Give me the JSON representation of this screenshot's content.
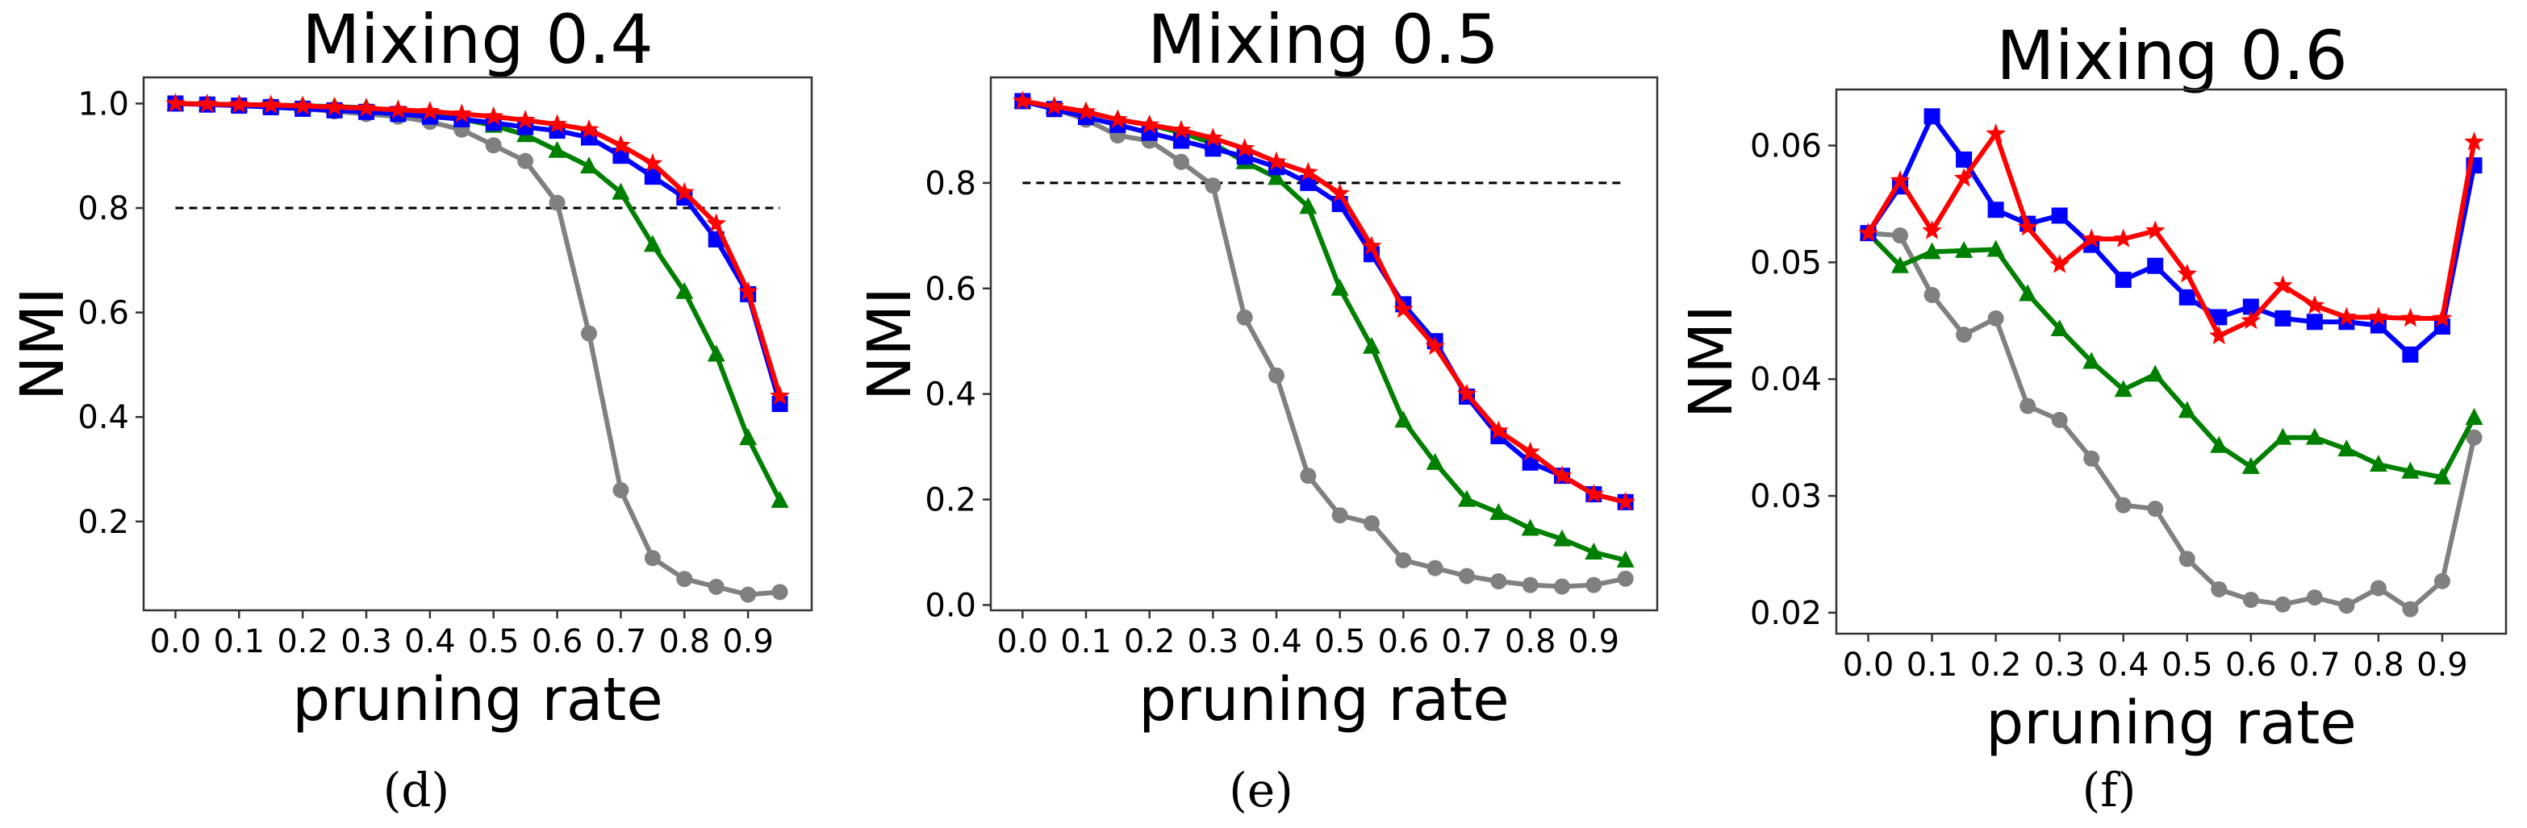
{
  "colors": {
    "red": "#ff0000",
    "blue": "#0000ff",
    "green": "#008000",
    "gray": "#808080",
    "reference": "#000000"
  },
  "chart_data": [
    {
      "type": "line",
      "title": "Mixing 0.4",
      "xlabel": "pruning rate",
      "ylabel": "NMI",
      "caption": "(d)",
      "xlim": [
        -0.05,
        1.0
      ],
      "ylim": [
        0.03,
        1.05
      ],
      "xticks": [
        0.0,
        0.1,
        0.2,
        0.3,
        0.4,
        0.5,
        0.6,
        0.7,
        0.8,
        0.9
      ],
      "xtick_labels": [
        "0.0",
        "0.1",
        "0.2",
        "0.3",
        "0.4",
        "0.5",
        "0.6",
        "0.7",
        "0.8",
        "0.9"
      ],
      "yticks": [
        0.2,
        0.4,
        0.6,
        0.8,
        1.0
      ],
      "ytick_labels": [
        "0.2",
        "0.4",
        "0.6",
        "0.8",
        "1.0"
      ],
      "reference_line": {
        "y": 0.8,
        "x": [
          0.0,
          0.95
        ],
        "style": "dashed"
      },
      "x": [
        0.0,
        0.05,
        0.1,
        0.15,
        0.2,
        0.25,
        0.3,
        0.35,
        0.4,
        0.45,
        0.5,
        0.55,
        0.6,
        0.65,
        0.7,
        0.75,
        0.8,
        0.85,
        0.9,
        0.95
      ],
      "series": [
        {
          "name": "red-star",
          "color": "red",
          "marker": "star",
          "values": [
            1.0,
            0.999,
            0.998,
            0.997,
            0.995,
            0.993,
            0.991,
            0.988,
            0.985,
            0.98,
            0.975,
            0.968,
            0.96,
            0.95,
            0.92,
            0.885,
            0.83,
            0.77,
            0.64,
            0.44
          ]
        },
        {
          "name": "blue-square",
          "color": "blue",
          "marker": "square",
          "values": [
            1.0,
            0.998,
            0.996,
            0.993,
            0.99,
            0.987,
            0.984,
            0.98,
            0.975,
            0.97,
            0.963,
            0.955,
            0.948,
            0.935,
            0.9,
            0.86,
            0.82,
            0.74,
            0.635,
            0.425
          ]
        },
        {
          "name": "green-triangle",
          "color": "green",
          "marker": "triangle",
          "values": [
            1.0,
            0.999,
            0.998,
            0.997,
            0.996,
            0.994,
            0.992,
            0.985,
            0.98,
            0.97,
            0.958,
            0.94,
            0.91,
            0.88,
            0.83,
            0.73,
            0.64,
            0.52,
            0.36,
            0.24
          ]
        },
        {
          "name": "gray-circle",
          "color": "gray",
          "marker": "circle",
          "values": [
            1.0,
            0.999,
            0.997,
            0.995,
            0.99,
            0.985,
            0.98,
            0.975,
            0.965,
            0.95,
            0.92,
            0.89,
            0.81,
            0.56,
            0.26,
            0.13,
            0.09,
            0.075,
            0.06,
            0.065
          ]
        }
      ]
    },
    {
      "type": "line",
      "title": "Mixing 0.5",
      "xlabel": "pruning rate",
      "ylabel": "NMI",
      "caption": "(e)",
      "xlim": [
        -0.05,
        1.0
      ],
      "ylim": [
        -0.01,
        1.0
      ],
      "xticks": [
        0.0,
        0.1,
        0.2,
        0.3,
        0.4,
        0.5,
        0.6,
        0.7,
        0.8,
        0.9
      ],
      "xtick_labels": [
        "0.0",
        "0.1",
        "0.2",
        "0.3",
        "0.4",
        "0.5",
        "0.6",
        "0.7",
        "0.8",
        "0.9"
      ],
      "yticks": [
        0.0,
        0.2,
        0.4,
        0.6,
        0.8
      ],
      "ytick_labels": [
        "0.0",
        "0.2",
        "0.4",
        "0.6",
        "0.8"
      ],
      "reference_line": {
        "y": 0.8,
        "x": [
          0.0,
          0.95
        ],
        "style": "dashed"
      },
      "x": [
        0.0,
        0.05,
        0.1,
        0.15,
        0.2,
        0.25,
        0.3,
        0.35,
        0.4,
        0.45,
        0.5,
        0.55,
        0.6,
        0.65,
        0.7,
        0.75,
        0.8,
        0.85,
        0.9,
        0.95
      ],
      "series": [
        {
          "name": "red-star",
          "color": "red",
          "marker": "star",
          "values": [
            0.955,
            0.945,
            0.935,
            0.92,
            0.91,
            0.9,
            0.885,
            0.865,
            0.84,
            0.82,
            0.78,
            0.68,
            0.56,
            0.49,
            0.4,
            0.33,
            0.29,
            0.245,
            0.21,
            0.195
          ]
        },
        {
          "name": "blue-square",
          "color": "blue",
          "marker": "square",
          "values": [
            0.955,
            0.94,
            0.925,
            0.91,
            0.895,
            0.88,
            0.865,
            0.85,
            0.83,
            0.8,
            0.76,
            0.665,
            0.57,
            0.5,
            0.395,
            0.32,
            0.27,
            0.245,
            0.21,
            0.195
          ]
        },
        {
          "name": "green-triangle",
          "color": "green",
          "marker": "triangle",
          "values": [
            0.955,
            0.945,
            0.935,
            0.92,
            0.91,
            0.895,
            0.875,
            0.84,
            0.81,
            0.755,
            0.6,
            0.49,
            0.35,
            0.27,
            0.2,
            0.175,
            0.145,
            0.125,
            0.1,
            0.085
          ]
        },
        {
          "name": "gray-circle",
          "color": "gray",
          "marker": "circle",
          "values": [
            0.955,
            0.94,
            0.92,
            0.89,
            0.88,
            0.84,
            0.795,
            0.545,
            0.435,
            0.245,
            0.17,
            0.155,
            0.085,
            0.07,
            0.055,
            0.045,
            0.038,
            0.035,
            0.038,
            0.05
          ]
        }
      ]
    },
    {
      "type": "line",
      "title": "Mixing 0.6",
      "xlabel": "pruning rate",
      "ylabel": "NMI",
      "caption": "(f)",
      "xlim": [
        -0.05,
        1.0
      ],
      "ylim": [
        0.0182,
        0.0648
      ],
      "xticks": [
        0.0,
        0.1,
        0.2,
        0.3,
        0.4,
        0.5,
        0.6,
        0.7,
        0.8,
        0.9
      ],
      "xtick_labels": [
        "0.0",
        "0.1",
        "0.2",
        "0.3",
        "0.4",
        "0.5",
        "0.6",
        "0.7",
        "0.8",
        "0.9"
      ],
      "yticks": [
        0.02,
        0.03,
        0.04,
        0.05,
        0.06
      ],
      "ytick_labels": [
        "0.02",
        "0.03",
        "0.04",
        "0.05",
        "0.06"
      ],
      "x": [
        0.0,
        0.05,
        0.1,
        0.15,
        0.2,
        0.25,
        0.3,
        0.35,
        0.4,
        0.45,
        0.5,
        0.55,
        0.6,
        0.65,
        0.7,
        0.75,
        0.8,
        0.85,
        0.9,
        0.95
      ],
      "series": [
        {
          "name": "red-star",
          "color": "red",
          "marker": "star",
          "values": [
            0.0525,
            0.057,
            0.0527,
            0.0572,
            0.061,
            0.053,
            0.0498,
            0.052,
            0.052,
            0.0527,
            0.049,
            0.0437,
            0.045,
            0.048,
            0.0463,
            0.0453,
            0.0453,
            0.0452,
            0.0452,
            0.0603
          ]
        },
        {
          "name": "blue-square",
          "color": "blue",
          "marker": "square",
          "values": [
            0.0525,
            0.0565,
            0.0625,
            0.0588,
            0.0545,
            0.0533,
            0.054,
            0.0515,
            0.0485,
            0.0497,
            0.047,
            0.0453,
            0.0462,
            0.0452,
            0.0449,
            0.0449,
            0.0446,
            0.0421,
            0.0445,
            0.0583
          ]
        },
        {
          "name": "green-triangle",
          "color": "green",
          "marker": "triangle",
          "values": [
            0.0525,
            0.0497,
            0.0509,
            0.051,
            0.0511,
            0.0473,
            0.0443,
            0.0415,
            0.0391,
            0.0404,
            0.0373,
            0.0343,
            0.0325,
            0.035,
            0.035,
            0.034,
            0.0327,
            0.0321,
            0.0316,
            0.0367
          ]
        },
        {
          "name": "gray-circle",
          "color": "gray",
          "marker": "circle",
          "values": [
            0.0525,
            0.0523,
            0.0472,
            0.0438,
            0.0452,
            0.0377,
            0.0365,
            0.0332,
            0.0292,
            0.0289,
            0.0246,
            0.022,
            0.0211,
            0.0207,
            0.0213,
            0.0206,
            0.0221,
            0.0203,
            0.0227,
            0.035
          ]
        }
      ]
    }
  ]
}
